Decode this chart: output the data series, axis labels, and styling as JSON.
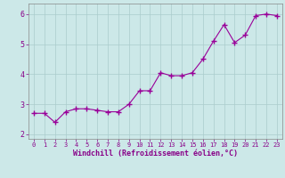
{
  "xlabel": "Windchill (Refroidissement éolien,°C)",
  "x_values": [
    0,
    1,
    2,
    3,
    4,
    5,
    6,
    7,
    8,
    9,
    10,
    11,
    12,
    13,
    14,
    15,
    16,
    17,
    18,
    19,
    20,
    21,
    22,
    23
  ],
  "y_values": [
    2.7,
    2.7,
    2.4,
    2.75,
    2.85,
    2.85,
    2.8,
    2.75,
    2.75,
    3.0,
    3.45,
    3.45,
    4.05,
    3.95,
    3.95,
    4.05,
    4.5,
    5.1,
    5.65,
    5.05,
    5.3,
    5.95,
    6.0,
    5.95
  ],
  "line_color": "#990099",
  "marker": "+",
  "marker_size": 4,
  "marker_edge_width": 1.0,
  "line_width": 0.8,
  "ylim": [
    1.85,
    6.35
  ],
  "xlim": [
    -0.5,
    23.5
  ],
  "yticks": [
    2,
    3,
    4,
    5,
    6
  ],
  "xticks": [
    0,
    1,
    2,
    3,
    4,
    5,
    6,
    7,
    8,
    9,
    10,
    11,
    12,
    13,
    14,
    15,
    16,
    17,
    18,
    19,
    20,
    21,
    22,
    23
  ],
  "bg_color": "#cce8e8",
  "grid_color": "#aacccc",
  "tick_color": "#880088",
  "label_color": "#880088",
  "spine_color": "#888888",
  "font_size_ticks": 5,
  "font_size_xlabel": 6
}
